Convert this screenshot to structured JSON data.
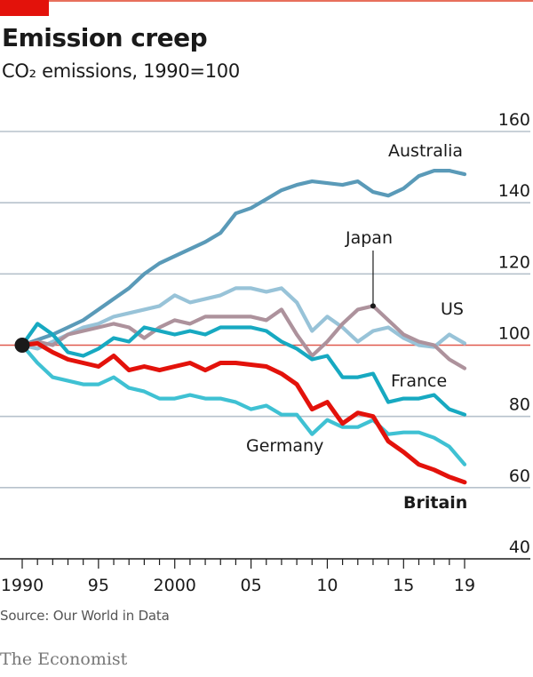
{
  "header": {
    "title": "Emission creep",
    "subtitle": "CO₂ emissions, 1990=100"
  },
  "footer": {
    "source": "Source: Our World in Data",
    "brand": "The Economist"
  },
  "colors": {
    "accent_red": "#e3120b",
    "top_rule": "#e8705c",
    "gridline": "#b7c2cc",
    "baseline": "#e05a4f"
  },
  "chart_data": {
    "type": "line",
    "title": "Emission creep",
    "subtitle": "CO₂ emissions, 1990=100",
    "xlabel": "",
    "ylabel": "",
    "x": [
      1990,
      1991,
      1992,
      1993,
      1994,
      1995,
      1996,
      1997,
      1998,
      1999,
      2000,
      2001,
      2002,
      2003,
      2004,
      2005,
      2006,
      2007,
      2008,
      2009,
      2010,
      2011,
      2012,
      2013,
      2014,
      2015,
      2016,
      2017,
      2018,
      2019
    ],
    "xlim": [
      1990,
      2019
    ],
    "ylim": [
      40,
      160
    ],
    "x_ticks": [
      {
        "value": 1990,
        "label": "1990"
      },
      {
        "value": 1995,
        "label": "95"
      },
      {
        "value": 2000,
        "label": "2000"
      },
      {
        "value": 2005,
        "label": "05"
      },
      {
        "value": 2010,
        "label": "10"
      },
      {
        "value": 2015,
        "label": "15"
      },
      {
        "value": 2019,
        "label": "19"
      }
    ],
    "y_ticks": [
      {
        "value": 160,
        "label": "160"
      },
      {
        "value": 140,
        "label": "140"
      },
      {
        "value": 120,
        "label": "120"
      },
      {
        "value": 100,
        "label": "100"
      },
      {
        "value": 80,
        "label": "80"
      },
      {
        "value": 60,
        "label": "60"
      },
      {
        "value": 40,
        "label": "40"
      }
    ],
    "grid": true,
    "legend": "direct-labels",
    "series": [
      {
        "name": "Australia",
        "label": "Australia",
        "color": "#5a9ab8",
        "values": [
          100,
          101.5,
          103,
          105,
          107,
          110,
          113,
          116,
          120,
          123,
          125,
          127,
          129,
          131.5,
          137,
          138.5,
          141,
          143.5,
          145,
          146,
          145.5,
          145,
          146,
          143,
          142,
          144,
          147.5,
          149,
          149,
          148
        ]
      },
      {
        "name": "US",
        "label": "US",
        "color": "#98c3d8",
        "values": [
          100,
          99,
          101,
          103,
          105,
          106,
          108,
          109,
          110,
          111,
          114,
          112,
          113,
          114,
          116,
          116,
          115,
          116,
          112,
          104,
          108,
          105,
          101,
          104,
          105,
          102,
          100,
          99.5,
          103,
          100.5
        ]
      },
      {
        "name": "Japan",
        "label": "Japan",
        "color": "#ad929c",
        "values": [
          100,
          101,
          100,
          103,
          104,
          105,
          106,
          105,
          102,
          105,
          107,
          106,
          108,
          108,
          108,
          108,
          107,
          110,
          103,
          97,
          101,
          106,
          110,
          111,
          107,
          103,
          101,
          100,
          96,
          93.5
        ]
      },
      {
        "name": "France",
        "label": "France",
        "color": "#17a9c1",
        "values": [
          100,
          106,
          103,
          98,
          97,
          99,
          102,
          101,
          105,
          104,
          103,
          104,
          103,
          105,
          105,
          105,
          104,
          101,
          99,
          96,
          97,
          91,
          91,
          92,
          84,
          85,
          85,
          86,
          82,
          80.5
        ]
      },
      {
        "name": "Germany",
        "label": "Germany",
        "color": "#3fc1d3",
        "values": [
          100,
          95,
          91,
          90,
          89,
          89,
          91,
          88,
          87,
          85,
          85,
          86,
          85,
          85,
          84,
          82,
          83,
          80.5,
          80.5,
          75,
          79,
          77,
          77,
          79,
          75,
          75.5,
          75.5,
          74,
          71.5,
          66.5
        ]
      },
      {
        "name": "Britain",
        "label": "Britain",
        "color": "#e3120b",
        "bold_label": true,
        "values": [
          100,
          100.5,
          98,
          96,
          95,
          94,
          97,
          93,
          94,
          93,
          94,
          95,
          93,
          95,
          95,
          94.5,
          94,
          92,
          89,
          82,
          84,
          78,
          81,
          80,
          73,
          70,
          66.5,
          65,
          63,
          61.5
        ]
      }
    ],
    "annotations": [
      {
        "text": "Japan",
        "year": 2013,
        "value": 111,
        "type": "callout-line"
      }
    ],
    "baseline": {
      "value": 100,
      "start_marker": "dot"
    }
  }
}
